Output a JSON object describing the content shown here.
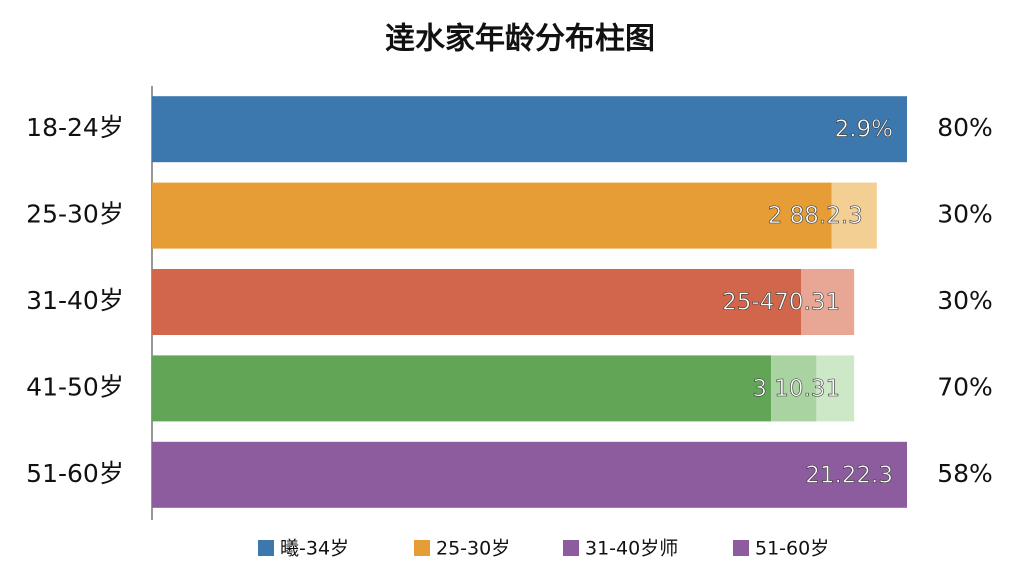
{
  "chart_data": {
    "type": "bar",
    "orientation": "horizontal",
    "title": "逹水家年龄分布柱图",
    "categories": [
      "18-24岁",
      "25-30岁",
      "31-40岁",
      "41-50岁",
      "51-60岁"
    ],
    "xlim": [
      0,
      100
    ],
    "series": [
      {
        "values": [
          100,
          90,
          86,
          82,
          100
        ],
        "colors": [
          "#3c78ae",
          "#e69d36",
          "#d1664a",
          "#62a556",
          "#8c5c9e"
        ]
      },
      {
        "values": [
          null,
          6,
          7,
          6,
          null
        ],
        "colors": [
          null,
          "#f4cf94",
          "#e8a795",
          "#a9d3a0",
          null
        ]
      },
      {
        "values": [
          null,
          null,
          null,
          5,
          null
        ],
        "colors": [
          null,
          null,
          null,
          "#cde8c6",
          null
        ]
      }
    ],
    "bar_labels": [
      "2.9%",
      "2 88.2.3",
      "25-470.31",
      "3 10.31",
      "21.22.3"
    ],
    "end_labels": [
      "80%",
      "30%",
      "30%",
      "70%",
      "58%"
    ],
    "legend": [
      {
        "label": "曦-34岁",
        "color": "#3c78ae"
      },
      {
        "label": "25-30岁",
        "color": "#e69d36"
      },
      {
        "label": "31-40岁师",
        "color": "#8c5c9e"
      },
      {
        "label": "51-60岁",
        "color": "#8c5c9e"
      }
    ]
  }
}
